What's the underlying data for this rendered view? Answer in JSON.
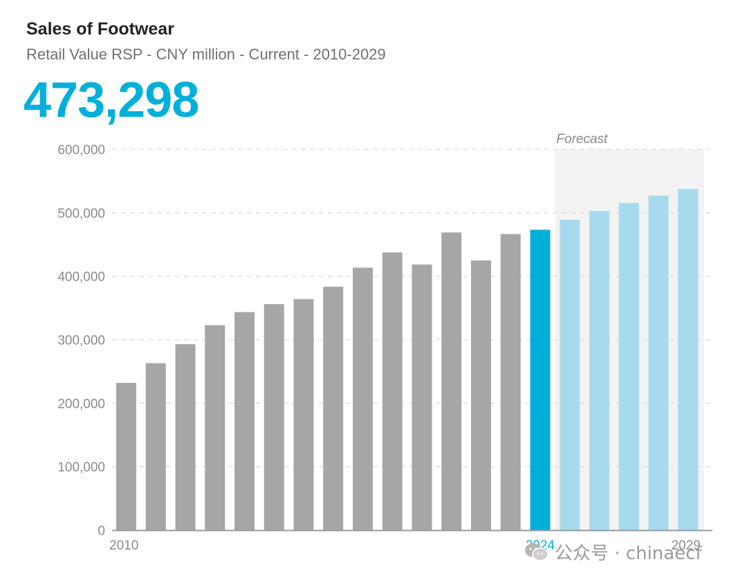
{
  "header": {
    "title": "Sales of Footwear",
    "subtitle": "Retail Value RSP - CNY million - Current - 2010-2029",
    "headline_value": "473,298"
  },
  "watermark": {
    "text": "公众号 · chinaecf",
    "icon": "wechat-icon"
  },
  "colors": {
    "historical": "#a6a6a8",
    "current": "#00b0db",
    "forecast": "#a8daee",
    "forecast_band": "#f3f3f3",
    "accent": "#00b0db"
  },
  "chart_data": {
    "type": "bar",
    "title": "Sales of Footwear",
    "subtitle": "Retail Value RSP - CNY million - Current - 2010-2029",
    "categories": [
      "2010",
      "2011",
      "2012",
      "2013",
      "2014",
      "2015",
      "2016",
      "2017",
      "2018",
      "2019",
      "2020",
      "2021",
      "2022",
      "2023",
      "2024",
      "2025",
      "2026",
      "2027",
      "2028",
      "2029"
    ],
    "values": [
      232000,
      263000,
      293000,
      323000,
      343500,
      356000,
      364000,
      383500,
      413500,
      437500,
      418500,
      469000,
      425000,
      466500,
      473298,
      489000,
      503000,
      515500,
      527000,
      537500
    ],
    "series_status": [
      "historical",
      "historical",
      "historical",
      "historical",
      "historical",
      "historical",
      "historical",
      "historical",
      "historical",
      "historical",
      "historical",
      "historical",
      "historical",
      "historical",
      "current",
      "forecast",
      "forecast",
      "forecast",
      "forecast",
      "forecast"
    ],
    "x_tick_labels": [
      {
        "category": "2010",
        "label": "2010"
      },
      {
        "category": "2024",
        "label": "2024"
      },
      {
        "category": "2029",
        "label": "2029"
      }
    ],
    "y_ticks": [
      0,
      100000,
      200000,
      300000,
      400000,
      500000,
      600000
    ],
    "y_tick_labels": [
      "0",
      "100,000",
      "200,000",
      "300,000",
      "400,000",
      "500,000",
      "600,000"
    ],
    "ylim": [
      0,
      600000
    ],
    "forecast_label": "Forecast",
    "forecast_start": "2025",
    "grid": true,
    "grid_style": "dashed",
    "legend": "none",
    "xlabel": "",
    "ylabel": ""
  }
}
